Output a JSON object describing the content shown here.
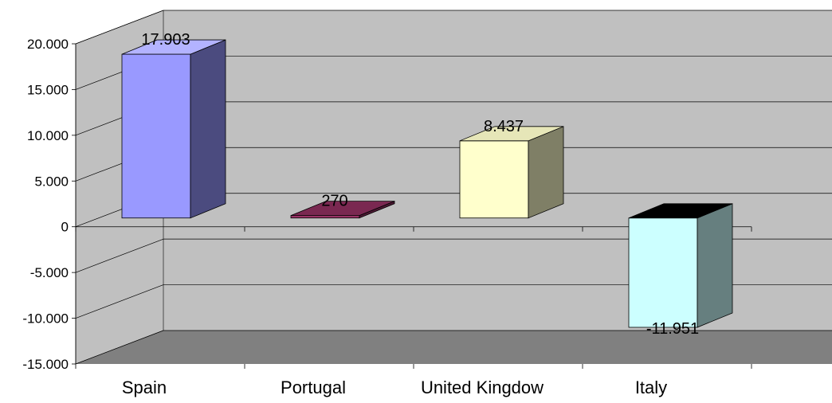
{
  "chart_data": {
    "type": "bar",
    "view": "3d",
    "categories": [
      "Spain",
      "Portugal",
      "United Kingdow",
      "Italy"
    ],
    "values": [
      17903,
      270,
      8437,
      -11951
    ],
    "data_labels": [
      "17.903",
      "270",
      "8.437",
      "-11.951"
    ],
    "ylim": [
      -15000,
      20000
    ],
    "yticks": [
      20000,
      15000,
      10000,
      5000,
      0,
      -5000,
      -10000,
      -15000
    ],
    "ytick_labels": [
      "20.000",
      "15.000",
      "10.000",
      "5.000",
      "0",
      "-5.000",
      "-10.000",
      "-15.000"
    ],
    "grid": true,
    "legend": "none",
    "colors": {
      "wall": "#c0c0c0",
      "floor": "#808080",
      "grid": "#000000",
      "bars": [
        {
          "front": "#9999ff",
          "side": "#4b4b7f",
          "top": "#b3b3ff"
        },
        {
          "front": "#993366",
          "side": "#4c1933",
          "top": "#7a2851"
        },
        {
          "front": "#ffffcc",
          "side": "#7f7f66",
          "top": "#e6e6b8"
        },
        {
          "front": "#ccffff",
          "side": "#667f7f",
          "top": "#000000"
        }
      ]
    }
  }
}
